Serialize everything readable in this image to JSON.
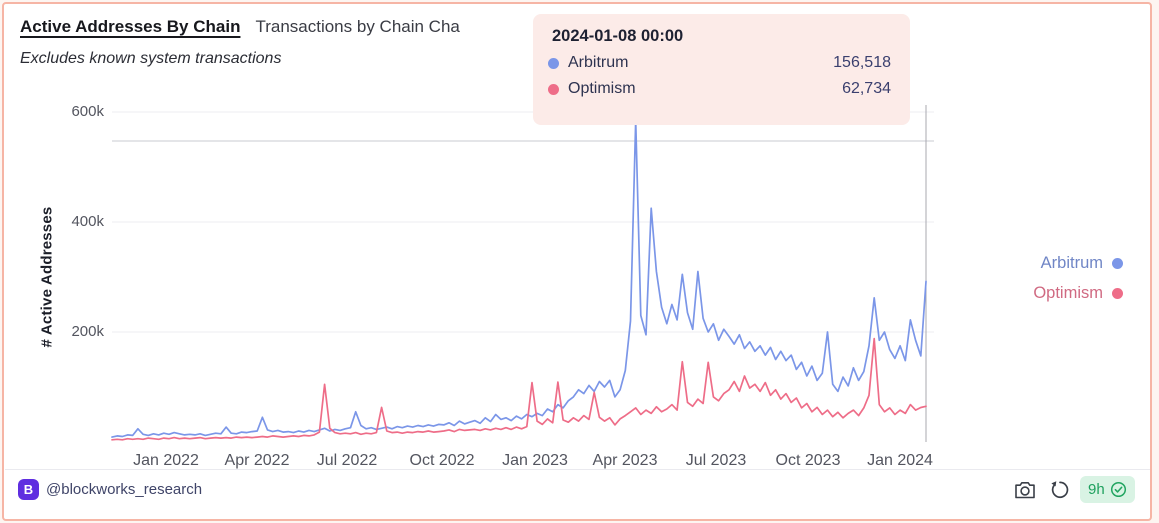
{
  "header": {
    "tab_active": "Active Addresses By Chain",
    "tab_secondary": "Transactions by Chain Cha",
    "subtitle": "Excludes known system transactions"
  },
  "tooltip": {
    "title": "2024-01-08 00:00",
    "rows": [
      {
        "label": "Arbitrum",
        "value": "156,518",
        "color": "#7b96e8"
      },
      {
        "label": "Optimism",
        "value": "62,734",
        "color": "#ee6d88"
      }
    ]
  },
  "legend": {
    "items": [
      {
        "label": "Arbitrum",
        "color": "#7b96e8"
      },
      {
        "label": "Optimism",
        "color": "#ee6d88"
      }
    ]
  },
  "chart_data": {
    "type": "line",
    "title": "Active Addresses By Chain",
    "subtitle": "Excludes known system transactions",
    "xlabel": "",
    "ylabel": "# Active Addresses",
    "ylim": [
      0,
      650000
    ],
    "grid": true,
    "legend_position": "right",
    "value_unit": "thousands of active addresses",
    "x_start": "2021-11-14",
    "x_end": "2024-01-09",
    "interval_days": 5,
    "x_ticks": [
      "Jan 2022",
      "Apr 2022",
      "Jul 2022",
      "Oct 2022",
      "Jan 2023",
      "Apr 2023",
      "Jul 2023",
      "Oct 2023",
      "Jan 2024"
    ],
    "y_tick_values": [
      200,
      400,
      600
    ],
    "y_tick_labels": [
      "200k",
      "400k",
      "600k"
    ],
    "hover_point": {
      "date": "2024-01-08 00:00",
      "Arbitrum": 156518,
      "Optimism": 62734
    },
    "series": [
      {
        "name": "Arbitrum",
        "color": "#7b96e8",
        "values_k": [
          9,
          11,
          10,
          13,
          12,
          24,
          14,
          12,
          15,
          13,
          16,
          14,
          17,
          15,
          13,
          14,
          13,
          15,
          12,
          14,
          16,
          15,
          27,
          16,
          15,
          18,
          17,
          19,
          20,
          45,
          22,
          19,
          21,
          18,
          19,
          17,
          20,
          18,
          21,
          19,
          22,
          25,
          20,
          23,
          21,
          24,
          26,
          55,
          30,
          24,
          26,
          23,
          25,
          27,
          24,
          28,
          26,
          29,
          27,
          30,
          28,
          31,
          29,
          32,
          31,
          35,
          30,
          38,
          33,
          36,
          39,
          34,
          44,
          37,
          50,
          41,
          44,
          39,
          47,
          42,
          50,
          46,
          52,
          48,
          60,
          55,
          68,
          62,
          75,
          82,
          95,
          88,
          103,
          92,
          110,
          100,
          112,
          82,
          95,
          130,
          220,
          585,
          230,
          195,
          425,
          310,
          245,
          215,
          250,
          222,
          305,
          235,
          205,
          310,
          225,
          200,
          215,
          185,
          205,
          192,
          178,
          195,
          170,
          182,
          165,
          175,
          158,
          172,
          150,
          165,
          148,
          158,
          132,
          145,
          120,
          138,
          112,
          125,
          200,
          105,
          92,
          118,
          102,
          135,
          112,
          128,
          175,
          262,
          185,
          200,
          168,
          152,
          175,
          148,
          222,
          185,
          156.5,
          292
        ]
      },
      {
        "name": "Optimism",
        "color": "#ee6d88",
        "values_k": [
          4,
          5,
          4,
          6,
          5,
          6,
          5,
          7,
          6,
          5,
          7,
          6,
          8,
          6,
          7,
          6,
          7,
          8,
          6,
          7,
          8,
          7,
          8,
          7,
          9,
          8,
          9,
          8,
          9,
          10,
          9,
          11,
          10,
          9,
          10,
          11,
          10,
          12,
          11,
          13,
          18,
          105,
          25,
          17,
          15,
          16,
          15,
          17,
          14,
          16,
          15,
          17,
          63,
          20,
          17,
          18,
          16,
          18,
          17,
          19,
          18,
          20,
          18,
          19,
          20,
          22,
          19,
          23,
          21,
          22,
          23,
          21,
          24,
          22,
          25,
          23,
          26,
          23,
          27,
          24,
          28,
          108,
          38,
          32,
          42,
          35,
          109,
          40,
          36,
          44,
          38,
          48,
          41,
          90,
          45,
          38,
          44,
          31,
          42,
          48,
          55,
          62,
          50,
          58,
          52,
          64,
          55,
          60,
          68,
          58,
          146,
          72,
          65,
          78,
          70,
          145,
          82,
          75,
          88,
          95,
          110,
          92,
          120,
          98,
          105,
          92,
          108,
          85,
          95,
          78,
          88,
          72,
          80,
          62,
          70,
          55,
          63,
          50,
          58,
          46,
          54,
          44,
          52,
          58,
          48,
          62,
          85,
          188,
          68,
          55,
          62,
          50,
          58,
          52,
          68,
          58,
          62.7,
          65
        ]
      }
    ]
  },
  "footer": {
    "logo_text": "B",
    "handle": "@blockworks_research",
    "badge_time": "9h"
  },
  "colors": {
    "card_border": "#f6b5a5",
    "page_bg": "#fdf5f1",
    "tooltip_bg": "#fcebe8",
    "arbitrum": "#7b96e8",
    "optimism": "#ee6d88",
    "gridline": "#ededf1",
    "plot_top_line": "#c9cbd1",
    "crosshair": "#a8a8af",
    "badge_bg": "#d9f3e4",
    "badge_text": "#1ea15e",
    "logo_bg": "#5f2ee0"
  }
}
